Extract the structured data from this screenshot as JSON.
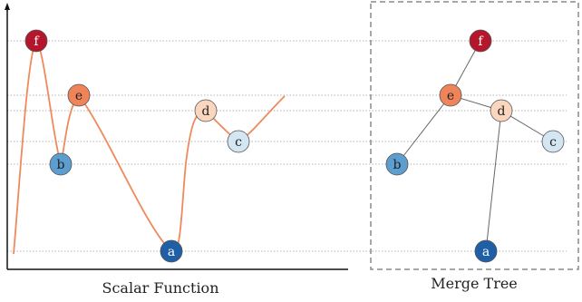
{
  "left_caption": "Scalar Function",
  "right_caption": "Merge Tree",
  "colors": {
    "curve": "#f08a5a",
    "guide": "#9a9a9a",
    "axis": "#111111",
    "tree_edge": "#666666",
    "box": "#8a8a8a"
  },
  "nodes": [
    {
      "id": "f",
      "label": "f",
      "fill": "#b4162c",
      "text": "#ffffff"
    },
    {
      "id": "e",
      "label": "e",
      "fill": "#ef8359",
      "text": "#222222"
    },
    {
      "id": "d",
      "label": "d",
      "fill": "#fbd6bf",
      "text": "#222222"
    },
    {
      "id": "c",
      "label": "c",
      "fill": "#d3e6f2",
      "text": "#222222"
    },
    {
      "id": "b",
      "label": "b",
      "fill": "#5b9ecf",
      "text": "#222222"
    },
    {
      "id": "a",
      "label": "a",
      "fill": "#1f5fa6",
      "text": "#ffffff"
    }
  ],
  "tree_edges": [
    [
      "f",
      "e"
    ],
    [
      "e",
      "b"
    ],
    [
      "e",
      "d"
    ],
    [
      "d",
      "c"
    ],
    [
      "d",
      "a"
    ]
  ]
}
